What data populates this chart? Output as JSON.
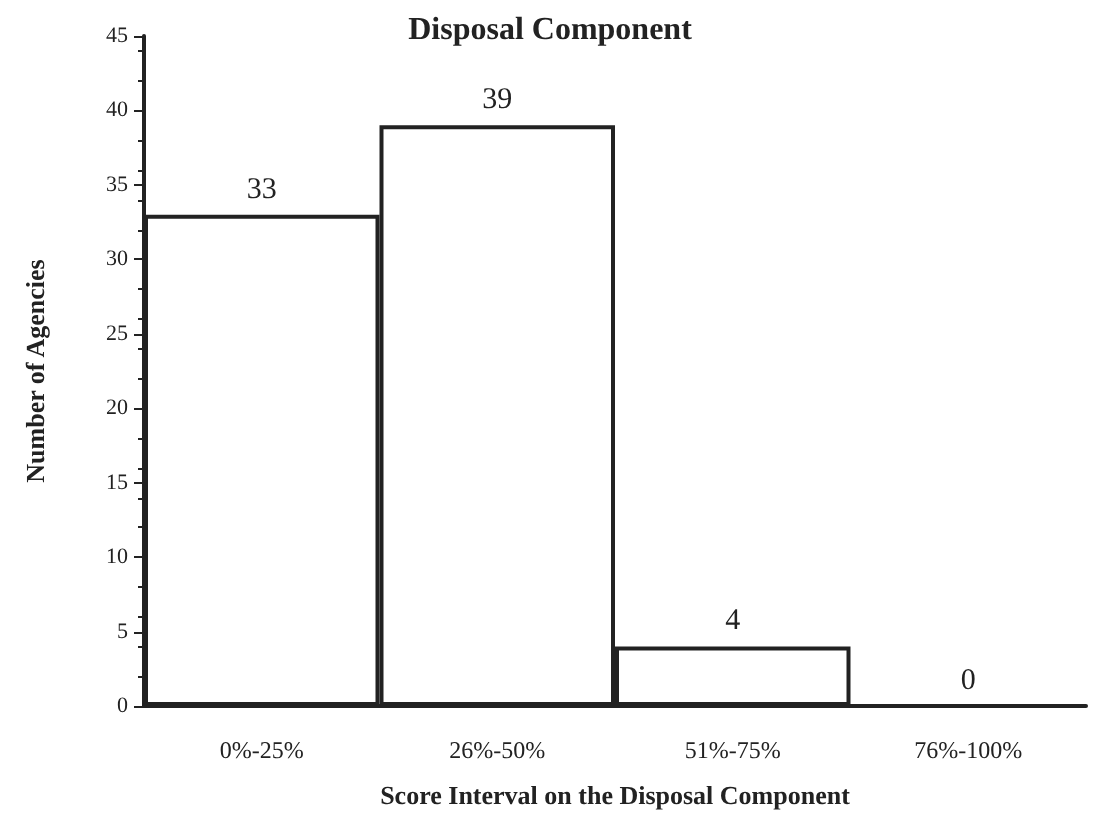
{
  "chart_data": {
    "type": "bar",
    "title": "Disposal Component",
    "xlabel": "Score Interval on the Disposal Component",
    "ylabel": "Number of Agencies",
    "categories": [
      "0%-25%",
      "26%-50%",
      "51%-75%",
      "76%-100%"
    ],
    "values": [
      33,
      39,
      4,
      0
    ],
    "color": "#ffffff",
    "data_labels": true,
    "ylim": [
      0,
      45
    ],
    "yticks": [
      0,
      5,
      10,
      15,
      20,
      25,
      30,
      35,
      40,
      45
    ],
    "grid": false
  }
}
